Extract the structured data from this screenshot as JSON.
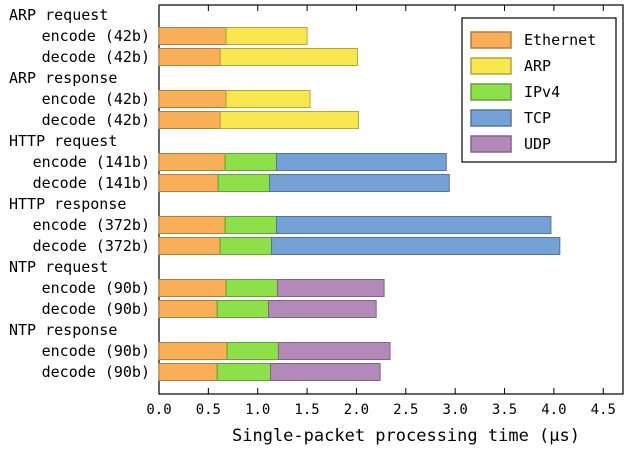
{
  "chart_data": {
    "type": "bar",
    "orientation": "horizontal",
    "stacked": true,
    "title": "",
    "xlabel": "Single-packet processing time (µs)",
    "ylabel": "",
    "xlim": [
      0,
      4.7
    ],
    "x_ticks": [
      "0.0",
      "0.5",
      "1.0",
      "1.5",
      "2.0",
      "2.5",
      "3.0",
      "3.5",
      "4.0",
      "4.5"
    ],
    "legend_position": "top-right",
    "legend": [
      {
        "name": "Ethernet",
        "color": "#f9ae58"
      },
      {
        "name": "ARP",
        "color": "#f9e74f"
      },
      {
        "name": "IPv4",
        "color": "#8de04a"
      },
      {
        "name": "TCP",
        "color": "#74a2d6"
      },
      {
        "name": "UDP",
        "color": "#b389ba"
      }
    ],
    "groups": [
      {
        "label": "ARP request",
        "rows": [
          {
            "label": "encode (42b)",
            "segments": {
              "Ethernet": 0.68,
              "ARP": 0.82
            }
          },
          {
            "label": "decode (42b)",
            "segments": {
              "Ethernet": 0.62,
              "ARP": 1.39
            }
          }
        ]
      },
      {
        "label": "ARP response",
        "rows": [
          {
            "label": "encode (42b)",
            "segments": {
              "Ethernet": 0.68,
              "ARP": 0.85
            }
          },
          {
            "label": "decode (42b)",
            "segments": {
              "Ethernet": 0.62,
              "ARP": 1.4
            }
          }
        ]
      },
      {
        "label": "HTTP request",
        "rows": [
          {
            "label": "encode (141b)",
            "segments": {
              "Ethernet": 0.67,
              "IPv4": 0.52,
              "TCP": 1.72
            }
          },
          {
            "label": "decode (141b)",
            "segments": {
              "Ethernet": 0.6,
              "IPv4": 0.52,
              "TCP": 1.82
            }
          }
        ]
      },
      {
        "label": "HTTP response",
        "rows": [
          {
            "label": "encode (372b)",
            "segments": {
              "Ethernet": 0.67,
              "IPv4": 0.52,
              "TCP": 2.78
            }
          },
          {
            "label": "decode (372b)",
            "segments": {
              "Ethernet": 0.62,
              "IPv4": 0.52,
              "TCP": 2.92
            }
          }
        ]
      },
      {
        "label": "NTP request",
        "rows": [
          {
            "label": "encode (90b)",
            "segments": {
              "Ethernet": 0.68,
              "IPv4": 0.52,
              "UDP": 1.08
            }
          },
          {
            "label": "decode (90b)",
            "segments": {
              "Ethernet": 0.59,
              "IPv4": 0.52,
              "UDP": 1.09
            }
          }
        ]
      },
      {
        "label": "NTP response",
        "rows": [
          {
            "label": "encode (90b)",
            "segments": {
              "Ethernet": 0.69,
              "IPv4": 0.52,
              "UDP": 1.13
            }
          },
          {
            "label": "decode (90b)",
            "segments": {
              "Ethernet": 0.59,
              "IPv4": 0.54,
              "UDP": 1.11
            }
          }
        ]
      }
    ]
  }
}
